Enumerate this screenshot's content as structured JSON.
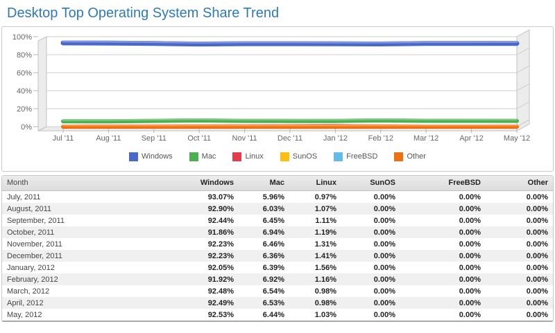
{
  "page_title": "Desktop Top Operating System Share Trend",
  "colors": {
    "title_blue": "#2e79b9",
    "grid": "#cccccc",
    "wall_fill": "#ececec",
    "wall_stroke": "#c2c2c2",
    "axis_text": "#666666"
  },
  "chart_data": {
    "type": "line",
    "title": "Desktop Top Operating System Share Trend",
    "x": [
      "Jul '11",
      "Aug '11",
      "Sep '11",
      "Oct '11",
      "Nov '11",
      "Dec '11",
      "Jan '12",
      "Feb '12",
      "Mar '12",
      "Apr '12",
      "May '12"
    ],
    "y_ticks": [
      "100%",
      "80%",
      "60%",
      "40%",
      "20%",
      "0%"
    ],
    "ylim": [
      0,
      100
    ],
    "grid": true,
    "legend_position": "bottom",
    "series": [
      {
        "name": "Windows",
        "color": "#4a68c8",
        "light": "#7e96e0",
        "values": [
          93.07,
          92.9,
          92.44,
          91.86,
          92.23,
          92.23,
          92.05,
          91.92,
          92.48,
          92.49,
          92.53
        ]
      },
      {
        "name": "Mac",
        "color": "#4caf50",
        "light": "#80c883",
        "values": [
          5.96,
          6.03,
          6.45,
          6.94,
          6.46,
          6.36,
          6.39,
          6.92,
          6.54,
          6.53,
          6.44
        ]
      },
      {
        "name": "Linux",
        "color": "#e23b4a",
        "light": "#ef6b77",
        "values": [
          0.97,
          1.07,
          1.11,
          1.19,
          1.31,
          1.41,
          1.56,
          1.16,
          0.98,
          0.98,
          1.03
        ]
      },
      {
        "name": "SunOS",
        "color": "#fdc012",
        "light": "#fed95e",
        "values": [
          0,
          0,
          0,
          0,
          0,
          0,
          0,
          0,
          0,
          0,
          0
        ]
      },
      {
        "name": "FreeBSD",
        "color": "#64bbe8",
        "light": "#9ad4f2",
        "values": [
          0,
          0,
          0,
          0,
          0,
          0,
          0,
          0,
          0,
          0,
          0
        ]
      },
      {
        "name": "Other",
        "color": "#ee7011",
        "light": "#f79a4d",
        "values": [
          0,
          0,
          0,
          0,
          0,
          0,
          0,
          0,
          0,
          0,
          0
        ]
      }
    ]
  },
  "table": {
    "columns": [
      "Month",
      "Windows",
      "Mac",
      "Linux",
      "SunOS",
      "FreeBSD",
      "Other"
    ],
    "rows": [
      [
        "July, 2011",
        "93.07%",
        "5.96%",
        "0.97%",
        "0.00%",
        "0.00%",
        "0.00%"
      ],
      [
        "August, 2011",
        "92.90%",
        "6.03%",
        "1.07%",
        "0.00%",
        "0.00%",
        "0.00%"
      ],
      [
        "September, 2011",
        "92.44%",
        "6.45%",
        "1.11%",
        "0.00%",
        "0.00%",
        "0.00%"
      ],
      [
        "October, 2011",
        "91.86%",
        "6.94%",
        "1.19%",
        "0.00%",
        "0.00%",
        "0.00%"
      ],
      [
        "November, 2011",
        "92.23%",
        "6.46%",
        "1.31%",
        "0.00%",
        "0.00%",
        "0.00%"
      ],
      [
        "December, 2011",
        "92.23%",
        "6.36%",
        "1.41%",
        "0.00%",
        "0.00%",
        "0.00%"
      ],
      [
        "January, 2012",
        "92.05%",
        "6.39%",
        "1.56%",
        "0.00%",
        "0.00%",
        "0.00%"
      ],
      [
        "February, 2012",
        "91.92%",
        "6.92%",
        "1.16%",
        "0.00%",
        "0.00%",
        "0.00%"
      ],
      [
        "March, 2012",
        "92.48%",
        "6.54%",
        "0.98%",
        "0.00%",
        "0.00%",
        "0.00%"
      ],
      [
        "April, 2012",
        "92.49%",
        "6.53%",
        "0.98%",
        "0.00%",
        "0.00%",
        "0.00%"
      ],
      [
        "May, 2012",
        "92.53%",
        "6.44%",
        "1.03%",
        "0.00%",
        "0.00%",
        "0.00%"
      ]
    ]
  }
}
